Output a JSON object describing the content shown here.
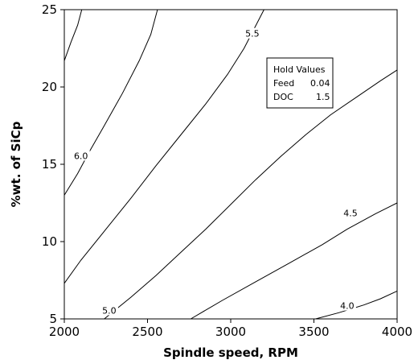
{
  "chart_data": {
    "type": "contour",
    "xlabel": "Spindle speed, RPM",
    "ylabel": "%wt. of SiCp",
    "xlim": [
      2000,
      4000
    ],
    "ylim": [
      5,
      25
    ],
    "x_ticks": [
      2000,
      2500,
      3000,
      3500,
      4000
    ],
    "y_ticks": [
      5,
      10,
      15,
      20,
      25
    ],
    "grid": false,
    "legend": {
      "title": "Hold Values",
      "placement": "top-right",
      "rows": [
        {
          "name": "Feed",
          "value": "0.04"
        },
        {
          "name": "DOC",
          "value": "1.5"
        }
      ]
    },
    "contours": [
      {
        "level": "",
        "points": [
          [
            2000,
            21.7
          ],
          [
            2040,
            22.9
          ],
          [
            2080,
            24.0
          ],
          [
            2105,
            25.0
          ]
        ]
      },
      {
        "level": "6.0",
        "label_at": [
          2100,
          15.5
        ],
        "points": [
          [
            2000,
            13.0
          ],
          [
            2080,
            14.4
          ],
          [
            2150,
            15.8
          ],
          [
            2240,
            17.5
          ],
          [
            2350,
            19.6
          ],
          [
            2450,
            21.7
          ],
          [
            2520,
            23.4
          ],
          [
            2560,
            25.0
          ]
        ]
      },
      {
        "level": "5.5",
        "label_at": [
          3130,
          23.4
        ],
        "points": [
          [
            2000,
            7.3
          ],
          [
            2100,
            8.8
          ],
          [
            2250,
            10.8
          ],
          [
            2400,
            12.8
          ],
          [
            2550,
            14.9
          ],
          [
            2700,
            16.9
          ],
          [
            2850,
            18.9
          ],
          [
            2980,
            20.8
          ],
          [
            3080,
            22.5
          ],
          [
            3200,
            25.0
          ]
        ]
      },
      {
        "level": "5.0",
        "label_at": [
          2270,
          5.5
        ],
        "points": [
          [
            2240,
            5.0
          ],
          [
            2400,
            6.4
          ],
          [
            2550,
            7.8
          ],
          [
            2700,
            9.3
          ],
          [
            2850,
            10.8
          ],
          [
            3000,
            12.4
          ],
          [
            3150,
            14.0
          ],
          [
            3300,
            15.5
          ],
          [
            3450,
            16.9
          ],
          [
            3600,
            18.2
          ],
          [
            3750,
            19.3
          ],
          [
            3900,
            20.4
          ],
          [
            4000,
            21.1
          ]
        ]
      },
      {
        "level": "4.5",
        "label_at": [
          3720,
          11.8
        ],
        "points": [
          [
            2760,
            5.0
          ],
          [
            2950,
            6.2
          ],
          [
            3150,
            7.4
          ],
          [
            3350,
            8.6
          ],
          [
            3550,
            9.8
          ],
          [
            3700,
            10.8
          ],
          [
            3870,
            11.8
          ],
          [
            4000,
            12.5
          ]
        ]
      },
      {
        "level": "4.0",
        "label_at": [
          3700,
          5.8
        ],
        "points": [
          [
            3510,
            5.0
          ],
          [
            3650,
            5.4
          ],
          [
            3800,
            5.9
          ],
          [
            3900,
            6.3
          ],
          [
            4000,
            6.8
          ]
        ]
      }
    ]
  }
}
